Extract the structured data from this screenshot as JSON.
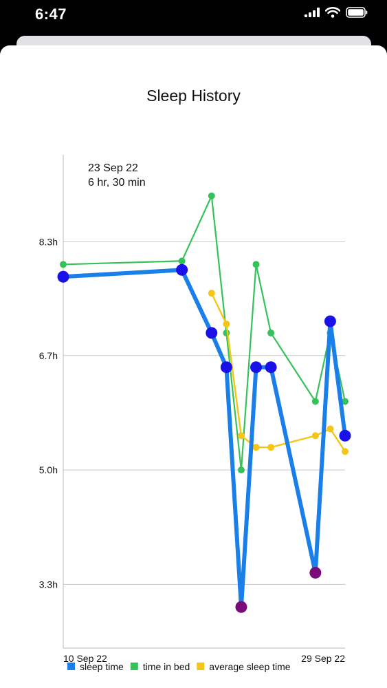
{
  "status_bar": {
    "time": "6:47",
    "icons": [
      "cellular-signal-icon",
      "wifi-icon",
      "battery-icon"
    ]
  },
  "sheet": {
    "title": "Sleep History"
  },
  "tooltip": {
    "date": "23 Sep 22",
    "value": "6 hr, 30 min"
  },
  "chart_data": {
    "type": "line",
    "x_tick_labels": [
      "10 Sep 22",
      "29 Sep 22"
    ],
    "y_tick_labels": [
      "3.3h",
      "5.0h",
      "6.7h",
      "8.3h"
    ],
    "y_ticks": [
      3.33,
      5.0,
      6.67,
      8.33
    ],
    "ylim": [
      2.4,
      9.6
    ],
    "xlim": [
      "2022-09-10",
      "2022-09-29"
    ],
    "grid": true,
    "legend_position": "bottom",
    "series": [
      {
        "name": "sleep time",
        "color": "#1a7fe8",
        "points": [
          {
            "x": "2022-09-10",
            "y": 7.82
          },
          {
            "x": "2022-09-18",
            "y": 7.92
          },
          {
            "x": "2022-09-20",
            "y": 7.0
          },
          {
            "x": "2022-09-21",
            "y": 6.5
          },
          {
            "x": "2022-09-22",
            "y": 3.0
          },
          {
            "x": "2022-09-23",
            "y": 6.5
          },
          {
            "x": "2022-09-24",
            "y": 6.5
          },
          {
            "x": "2022-09-27",
            "y": 3.5
          },
          {
            "x": "2022-09-28",
            "y": 7.17
          },
          {
            "x": "2022-09-29",
            "y": 5.5
          }
        ],
        "marker_colors": [
          "#1a10e8",
          "#1a10e8",
          "#1a10e8",
          "#1a10e8",
          "#7b0a7b",
          "#1a10e8",
          "#1a10e8",
          "#7b0a7b",
          "#1a10e8",
          "#1a10e8"
        ]
      },
      {
        "name": "time in bed",
        "color": "#36c25a",
        "points": [
          {
            "x": "2022-09-10",
            "y": 8.0
          },
          {
            "x": "2022-09-18",
            "y": 8.05
          },
          {
            "x": "2022-09-20",
            "y": 9.0
          },
          {
            "x": "2022-09-21",
            "y": 7.0
          },
          {
            "x": "2022-09-22",
            "y": 5.0
          },
          {
            "x": "2022-09-23",
            "y": 8.0
          },
          {
            "x": "2022-09-24",
            "y": 7.0
          },
          {
            "x": "2022-09-27",
            "y": 6.0
          },
          {
            "x": "2022-09-28",
            "y": 7.0
          },
          {
            "x": "2022-09-29",
            "y": 6.0
          }
        ]
      },
      {
        "name": "average sleep time",
        "color": "#f5c518",
        "points": [
          {
            "x": "2022-09-20",
            "y": 7.58
          },
          {
            "x": "2022-09-21",
            "y": 7.13
          },
          {
            "x": "2022-09-22",
            "y": 5.5
          },
          {
            "x": "2022-09-23",
            "y": 5.33
          },
          {
            "x": "2022-09-24",
            "y": 5.33
          },
          {
            "x": "2022-09-27",
            "y": 5.5
          },
          {
            "x": "2022-09-28",
            "y": 5.6
          },
          {
            "x": "2022-09-29",
            "y": 5.27
          }
        ]
      }
    ]
  }
}
